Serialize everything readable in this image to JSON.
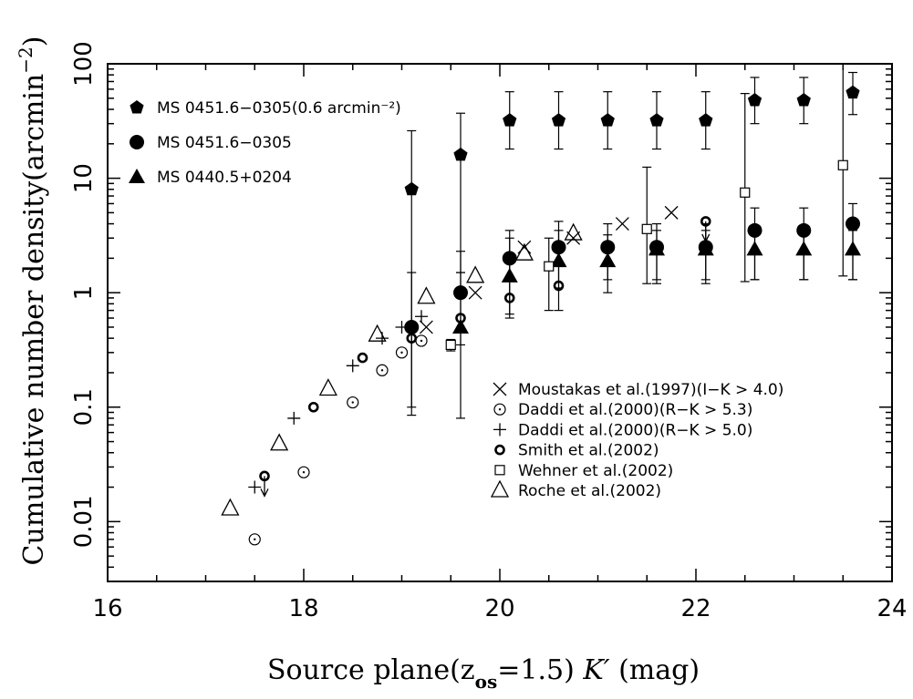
{
  "chart_data": {
    "type": "scatter",
    "title": "",
    "xlabel": {
      "pre": "Source plane(z",
      "sub": "os",
      "mid": "=1.5) ",
      "ital": "K′",
      "post": " (mag)"
    },
    "ylabel": {
      "main": "Cumulative number density(arcmin",
      "sup": "−2",
      "close": ")"
    },
    "xlim": [
      16,
      24
    ],
    "ylim": [
      0.003,
      100
    ],
    "yscale": "log",
    "grid": false,
    "xticks": [
      "16",
      "18",
      "20",
      "22",
      "24"
    ],
    "yticks": [
      "0.01",
      "0.1",
      "1",
      "10",
      "100"
    ],
    "legend_top_left": [
      {
        "marker": "pentagon",
        "label": "MS 0451.6−0305(0.6 arcmin⁻²)"
      },
      {
        "marker": "circle-filled",
        "label": "MS 0451.6−0305"
      },
      {
        "marker": "triangle-filled",
        "label": "MS 0440.5+0204"
      }
    ],
    "legend_bottom_right": [
      {
        "marker": "x",
        "label": "Moustakas et al.(1997)(I−K > 4.0)"
      },
      {
        "marker": "dotcircle",
        "label": "Daddi et al.(2000)(R−K > 5.3)"
      },
      {
        "marker": "plus",
        "label": "Daddi et al.(2000)(R−K > 5.0)"
      },
      {
        "marker": "circle-bold",
        "label": "Smith et al.(2002)"
      },
      {
        "marker": "square",
        "label": "Wehner et al.(2002)"
      },
      {
        "marker": "triangle-open",
        "label": "Roche et al.(2002)"
      }
    ],
    "series": [
      {
        "name": "MS 0451.6−0305(0.6 arcmin⁻²)",
        "marker": "pentagon",
        "points": [
          {
            "x": 19.1,
            "y": 8,
            "ylo": 0.085,
            "yhi": 26
          },
          {
            "x": 19.6,
            "y": 16,
            "ylo": 1.5,
            "yhi": 37
          },
          {
            "x": 20.1,
            "y": 32,
            "ylo": 18,
            "yhi": 57
          },
          {
            "x": 20.6,
            "y": 32,
            "ylo": 18,
            "yhi": 57
          },
          {
            "x": 21.1,
            "y": 32,
            "ylo": 18,
            "yhi": 57
          },
          {
            "x": 21.6,
            "y": 32,
            "ylo": 18,
            "yhi": 57
          },
          {
            "x": 22.1,
            "y": 32,
            "ylo": 18,
            "yhi": 57
          },
          {
            "x": 22.6,
            "y": 48,
            "ylo": 30,
            "yhi": 76
          },
          {
            "x": 23.1,
            "y": 48,
            "ylo": 30,
            "yhi": 76
          },
          {
            "x": 23.6,
            "y": 56,
            "ylo": 36,
            "yhi": 84
          }
        ]
      },
      {
        "name": "MS 0451.6−0305",
        "marker": "circle-filled",
        "points": [
          {
            "x": 19.1,
            "y": 0.5,
            "ylo": 0.1,
            "yhi": 1.5
          },
          {
            "x": 19.6,
            "y": 1.0,
            "ylo": 0.35,
            "yhi": 2.3
          },
          {
            "x": 20.1,
            "y": 2.0,
            "ylo": 0.65,
            "yhi": 3.5
          },
          {
            "x": 20.6,
            "y": 2.5,
            "ylo": 1.1,
            "yhi": 4.2
          },
          {
            "x": 21.1,
            "y": 2.5,
            "ylo": 1.3,
            "yhi": 4.0
          },
          {
            "x": 21.6,
            "y": 2.5,
            "ylo": 1.3,
            "yhi": 4.0
          },
          {
            "x": 22.1,
            "y": 2.5,
            "ylo": 1.3,
            "yhi": 4.0
          },
          {
            "x": 22.6,
            "y": 3.5,
            "ylo": 1.3,
            "yhi": 5.5
          },
          {
            "x": 23.1,
            "y": 3.5,
            "ylo": 1.3,
            "yhi": 5.5
          },
          {
            "x": 23.6,
            "y": 4.0,
            "ylo": 1.3,
            "yhi": 6.0
          }
        ]
      },
      {
        "name": "MS 0440.5+0204",
        "marker": "triangle-filled",
        "points": [
          {
            "x": 19.6,
            "y": 0.5,
            "ylo": 0.08,
            "yhi": 1.5
          },
          {
            "x": 20.1,
            "y": 1.4,
            "ylo": 0.6,
            "yhi": 3.0
          },
          {
            "x": 20.6,
            "y": 1.9,
            "ylo": 0.7,
            "yhi": 3.5
          },
          {
            "x": 21.1,
            "y": 1.9,
            "ylo": 1.0,
            "yhi": 3.2
          },
          {
            "x": 21.6,
            "y": 2.4,
            "ylo": 1.2,
            "yhi": 3.5
          },
          {
            "x": 22.1,
            "y": 2.4,
            "ylo": 1.2,
            "yhi": 3.5
          },
          {
            "x": 22.6,
            "y": 2.4,
            "ylo": 1.3,
            "yhi": 3.5
          },
          {
            "x": 23.1,
            "y": 2.4,
            "ylo": 1.3,
            "yhi": 3.5
          },
          {
            "x": 23.6,
            "y": 2.4,
            "ylo": 1.3,
            "yhi": 3.5
          }
        ]
      },
      {
        "name": "Moustakas et al.(1997)(I−K > 4.0)",
        "marker": "x",
        "points": [
          {
            "x": 19.25,
            "y": 0.5
          },
          {
            "x": 19.75,
            "y": 1.0
          },
          {
            "x": 20.25,
            "y": 2.5
          },
          {
            "x": 20.75,
            "y": 3.0
          },
          {
            "x": 21.25,
            "y": 4.0
          },
          {
            "x": 21.75,
            "y": 5.0
          }
        ]
      },
      {
        "name": "Daddi et al.(2000)(R−K > 5.3)",
        "marker": "dotcircle",
        "points": [
          {
            "x": 17.5,
            "y": 0.007
          },
          {
            "x": 18.0,
            "y": 0.027
          },
          {
            "x": 18.5,
            "y": 0.11
          },
          {
            "x": 18.8,
            "y": 0.21
          },
          {
            "x": 19.0,
            "y": 0.3
          },
          {
            "x": 19.2,
            "y": 0.38
          }
        ]
      },
      {
        "name": "Daddi et al.(2000)(R−K > 5.0)",
        "marker": "plus",
        "points": [
          {
            "x": 17.5,
            "y": 0.02
          },
          {
            "x": 17.9,
            "y": 0.08
          },
          {
            "x": 18.5,
            "y": 0.23
          },
          {
            "x": 18.8,
            "y": 0.4
          },
          {
            "x": 19.0,
            "y": 0.5
          },
          {
            "x": 19.2,
            "y": 0.62
          }
        ]
      },
      {
        "name": "Smith et al.(2002)",
        "marker": "circle-bold",
        "points": [
          {
            "x": 17.6,
            "y": 0.025,
            "upper": true
          },
          {
            "x": 18.1,
            "y": 0.1
          },
          {
            "x": 18.6,
            "y": 0.27
          },
          {
            "x": 19.1,
            "y": 0.4
          },
          {
            "x": 19.6,
            "y": 0.6
          },
          {
            "x": 20.1,
            "y": 0.9
          },
          {
            "x": 20.6,
            "y": 1.15
          },
          {
            "x": 22.1,
            "y": 4.2,
            "upper": true
          }
        ]
      },
      {
        "name": "Wehner et al.(2002)",
        "marker": "square",
        "points": [
          {
            "x": 19.5,
            "y": 0.35,
            "ylo": 0.31,
            "yhi": 0.39
          },
          {
            "x": 20.5,
            "y": 1.7,
            "ylo": 0.7,
            "yhi": 3.0
          },
          {
            "x": 21.5,
            "y": 3.6,
            "ylo": 1.2,
            "yhi": 12.5
          },
          {
            "x": 22.5,
            "y": 7.5,
            "ylo": 1.25,
            "yhi": 55
          },
          {
            "x": 23.5,
            "y": 13,
            "ylo": 1.4,
            "yhi": 100
          }
        ]
      },
      {
        "name": "Roche et al.(2002)",
        "marker": "triangle-open",
        "points": [
          {
            "x": 17.25,
            "y": 0.013
          },
          {
            "x": 17.75,
            "y": 0.048
          },
          {
            "x": 18.25,
            "y": 0.145
          },
          {
            "x": 18.75,
            "y": 0.43
          },
          {
            "x": 19.25,
            "y": 0.92
          },
          {
            "x": 19.75,
            "y": 1.4
          },
          {
            "x": 20.25,
            "y": 2.2
          },
          {
            "x": 20.75,
            "y": 3.3
          }
        ]
      }
    ]
  }
}
